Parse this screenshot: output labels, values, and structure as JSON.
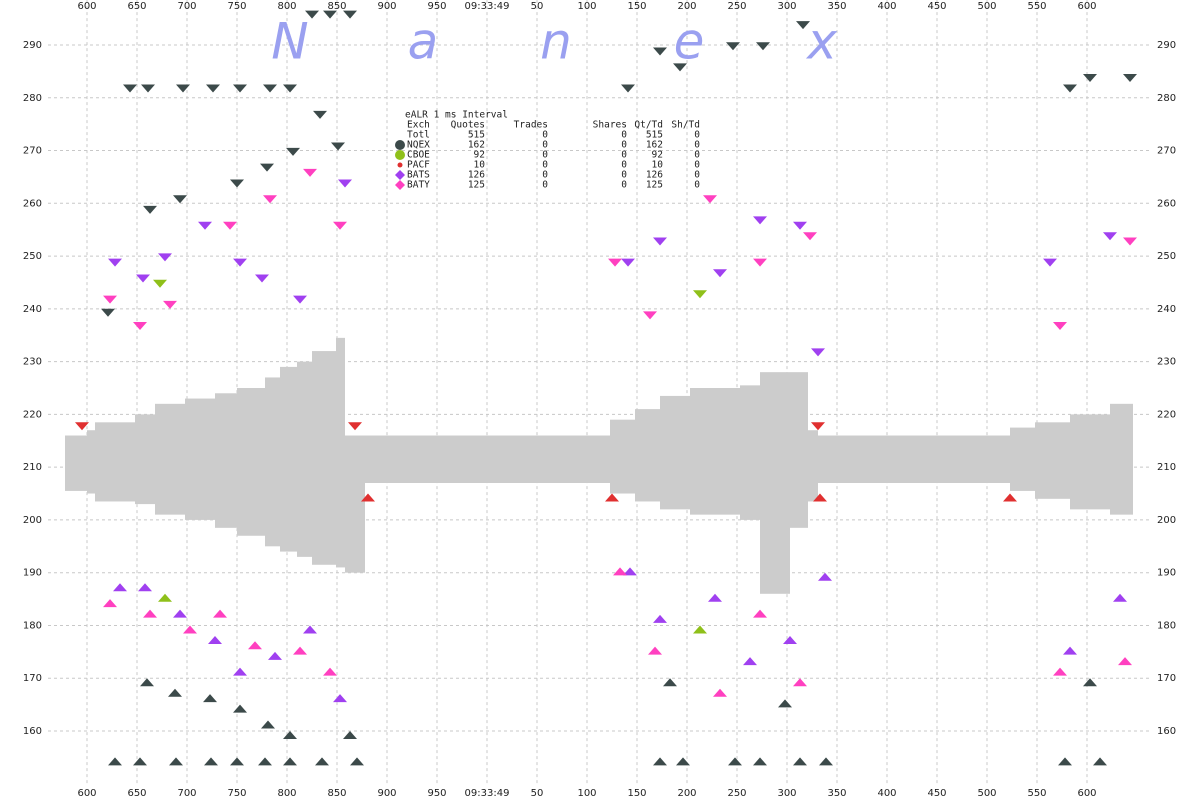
{
  "chart_data": {
    "type": "quote-spread",
    "watermark": [
      "N",
      "a",
      "n",
      "e",
      "x"
    ],
    "xlim": [
      540,
      1660
    ],
    "ylim": [
      150,
      298.5
    ],
    "xticks": [
      {
        "value": 600,
        "label": "600"
      },
      {
        "value": 650,
        "label": "650"
      },
      {
        "value": 700,
        "label": "700"
      },
      {
        "value": 750,
        "label": "750"
      },
      {
        "value": 800,
        "label": "800"
      },
      {
        "value": 850,
        "label": "850"
      },
      {
        "value": 900,
        "label": "900"
      },
      {
        "value": 950,
        "label": "950"
      },
      {
        "value": 1000,
        "label": "09:33:49"
      },
      {
        "value": 1050,
        "label": "50"
      },
      {
        "value": 1100,
        "label": "100"
      },
      {
        "value": 1150,
        "label": "150"
      },
      {
        "value": 1200,
        "label": "200"
      },
      {
        "value": 1250,
        "label": "250"
      },
      {
        "value": 1300,
        "label": "300"
      },
      {
        "value": 1350,
        "label": "350"
      },
      {
        "value": 1400,
        "label": "400"
      },
      {
        "value": 1450,
        "label": "450"
      },
      {
        "value": 1500,
        "label": "500"
      },
      {
        "value": 1550,
        "label": "550"
      },
      {
        "value": 1600,
        "label": "600"
      }
    ],
    "yticks": [
      160,
      170,
      180,
      190,
      200,
      210,
      220,
      230,
      240,
      250,
      260,
      270,
      280,
      290
    ],
    "grid": true,
    "spread": {
      "color": "#cccccc",
      "bins": [
        578,
        600,
        608,
        648,
        668,
        698,
        728,
        750,
        778,
        793,
        810,
        825,
        849,
        858,
        878,
        1123,
        1148,
        1173,
        1203,
        1253,
        1273,
        1303,
        1321,
        1331,
        1523,
        1548,
        1583,
        1623,
        1646
      ],
      "low": [
        205.5,
        205,
        203.5,
        203,
        201,
        200,
        198.5,
        197,
        195,
        194,
        193,
        191.5,
        191,
        190,
        207,
        205,
        203.5,
        202,
        201,
        200,
        186,
        198.5,
        203.5,
        207,
        205.5,
        204,
        202,
        201
      ],
      "high": [
        216,
        217,
        218.5,
        220,
        222,
        223,
        224,
        225,
        227,
        229,
        230,
        232,
        234.5,
        216,
        216,
        219,
        221,
        223.5,
        225,
        225.5,
        228,
        228,
        217,
        216,
        217.5,
        218.5,
        220,
        222
      ]
    },
    "series": [
      {
        "name": "NQEX",
        "color": "#3c4a4a",
        "ask_x": [
          643,
          661,
          696,
          726,
          753,
          783,
          803,
          825,
          843,
          863,
          1141,
          1173,
          1193,
          1246,
          1276,
          1316,
          833,
          851,
          693,
          750,
          780,
          806,
          1583,
          1603,
          1643,
          663,
          621
        ],
        "ask_y": [
          281,
          281,
          281,
          281,
          281,
          281,
          281,
          295,
          295,
          295,
          281,
          288,
          285,
          289,
          289,
          293,
          276,
          270,
          260,
          263,
          266,
          269,
          281,
          283,
          283,
          258,
          238.5
        ],
        "bid_x": [
          628,
          653,
          689,
          724,
          750,
          778,
          803,
          835,
          870,
          1173,
          1196,
          1248,
          1273,
          1313,
          1339,
          1578,
          1613,
          660,
          688,
          723,
          753,
          781,
          803,
          863,
          1183,
          1298,
          1603
        ],
        "bid_y": [
          155,
          155,
          155,
          155,
          155,
          155,
          155,
          155,
          155,
          155,
          155,
          155,
          155,
          155,
          155,
          155,
          155,
          170,
          168,
          167,
          165,
          162,
          160,
          160,
          170,
          166,
          170
        ]
      },
      {
        "name": "CBOE",
        "color": "#8fc01a",
        "ask_x": [
          673,
          1213
        ],
        "ask_y": [
          244,
          242
        ],
        "bid_x": [
          678,
          1213
        ],
        "bid_y": [
          186,
          180
        ]
      },
      {
        "name": "PACF",
        "color": "#e03030",
        "ask_x": [
          595,
          868,
          1331
        ],
        "ask_y": [
          217,
          217,
          217
        ],
        "bid_x": [
          1125,
          881,
          1523,
          1333
        ],
        "bid_y": [
          205,
          205,
          205,
          205
        ]
      },
      {
        "name": "BATS",
        "color": "#a040f0",
        "ask_x": [
          628,
          656,
          678,
          718,
          753,
          775,
          813,
          858,
          1141,
          1173,
          1233,
          1273,
          1313,
          1331,
          1563,
          1623
        ],
        "ask_y": [
          248,
          245,
          249,
          255,
          248,
          245,
          241,
          263,
          248,
          252,
          246,
          256,
          255,
          231,
          248,
          253
        ],
        "bid_x": [
          633,
          658,
          693,
          728,
          753,
          788,
          823,
          853,
          1143,
          1173,
          1228,
          1263,
          1303,
          1338,
          1583,
          1633
        ],
        "bid_y": [
          188,
          188,
          183,
          178,
          172,
          175,
          180,
          167,
          191,
          182,
          186,
          174,
          178,
          190,
          176,
          186
        ]
      },
      {
        "name": "BATY",
        "color": "#ff40c0",
        "ask_x": [
          623,
          653,
          683,
          743,
          783,
          823,
          853,
          1128,
          1163,
          1223,
          1273,
          1323,
          1573,
          1643
        ],
        "ask_y": [
          241,
          236,
          240,
          255,
          260,
          265,
          255,
          248,
          238,
          260,
          248,
          253,
          236,
          252
        ],
        "bid_x": [
          623,
          663,
          703,
          733,
          768,
          813,
          843,
          1133,
          1168,
          1233,
          1273,
          1313,
          1573,
          1638
        ],
        "bid_y": [
          185,
          183,
          180,
          183,
          177,
          176,
          172,
          191,
          176,
          168,
          183,
          170,
          172,
          174
        ]
      }
    ],
    "table": {
      "title": "eALR 1 ms Interval",
      "header": [
        "Exch",
        "Quotes",
        "Trades",
        "Shares",
        "Qt/Td",
        "Sh/Td"
      ],
      "rows": [
        [
          "Totl",
          "515",
          "0",
          "0",
          "515",
          "0"
        ],
        [
          "NQEX",
          "162",
          "0",
          "0",
          "162",
          "0"
        ],
        [
          "CBOE",
          "92",
          "0",
          "0",
          "92",
          "0"
        ],
        [
          "PACF",
          "10",
          "0",
          "0",
          "10",
          "0"
        ],
        [
          "BATS",
          "126",
          "0",
          "0",
          "126",
          "0"
        ],
        [
          "BATY",
          "125",
          "0",
          "0",
          "125",
          "0"
        ]
      ]
    }
  }
}
